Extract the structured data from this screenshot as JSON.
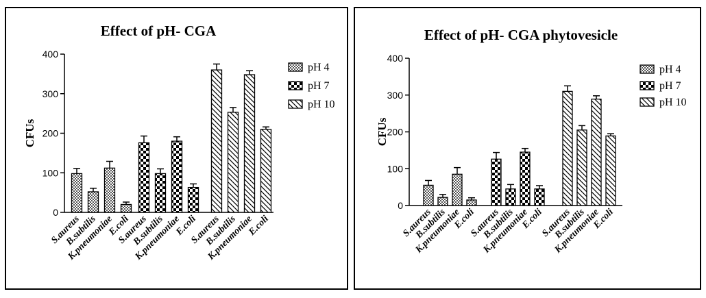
{
  "chart_data": [
    {
      "type": "bar",
      "title": "Effect of pH- CGA",
      "xlabel": "",
      "ylabel": "CFUs",
      "ylim": [
        0,
        400
      ],
      "yticks": [
        "0",
        "100",
        "200",
        "300",
        "400"
      ],
      "grid": false,
      "legend_position": "top-right",
      "categories": [
        "S.aureus",
        "B.subtilis",
        "K.pneumoniae",
        "E.coli"
      ],
      "series": [
        {
          "name": "pH 4",
          "values": [
            98,
            52,
            112,
            20
          ],
          "errors": [
            13,
            9,
            17,
            6
          ]
        },
        {
          "name": "pH 7",
          "values": [
            176,
            98,
            180,
            63
          ],
          "errors": [
            17,
            12,
            11,
            9
          ]
        },
        {
          "name": "pH 10",
          "values": [
            360,
            253,
            348,
            210
          ],
          "errors": [
            15,
            12,
            10,
            6
          ]
        }
      ]
    },
    {
      "type": "bar",
      "title": "Effect of pH- CGA phytovesicle",
      "xlabel": "",
      "ylabel": "CFUs",
      "ylim": [
        0,
        400
      ],
      "yticks": [
        "0",
        "100",
        "200",
        "300",
        "400"
      ],
      "grid": false,
      "legend_position": "top-right",
      "categories": [
        "S.aureus",
        "B.subtilis",
        "K.pneumoniae",
        "E.coli"
      ],
      "series": [
        {
          "name": "pH 4",
          "values": [
            55,
            22,
            85,
            15
          ],
          "errors": [
            13,
            8,
            18,
            6
          ]
        },
        {
          "name": "pH 7",
          "values": [
            126,
            45,
            145,
            45
          ],
          "errors": [
            18,
            12,
            10,
            9
          ]
        },
        {
          "name": "pH 10",
          "values": [
            310,
            205,
            289,
            189
          ],
          "errors": [
            15,
            12,
            9,
            6
          ]
        }
      ]
    }
  ]
}
